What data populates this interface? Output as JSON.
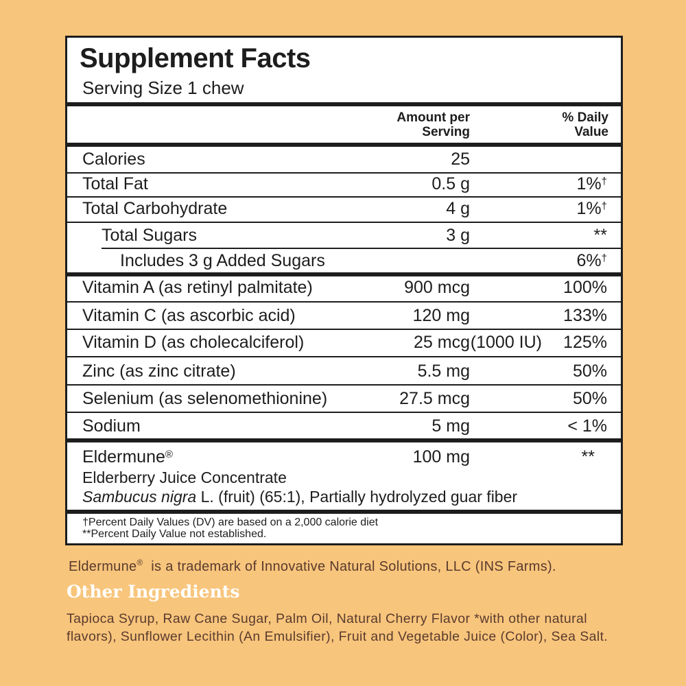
{
  "panel": {
    "title": "Supplement Facts",
    "serving_size": "Serving Size 1 chew",
    "header": {
      "amount_line1": "Amount per",
      "amount_line2": "Serving",
      "dv_line1": "% Daily",
      "dv_line2": "Value"
    },
    "rows": [
      {
        "name": "Calories",
        "amount": "25",
        "dv": "",
        "mark": ""
      },
      {
        "name": "Total Fat",
        "amount": "0.5 g",
        "dv": "1%",
        "mark": "†"
      },
      {
        "name": "Total Carbohydrate",
        "amount": "4 g",
        "dv": "1%",
        "mark": "†"
      },
      {
        "name": "Total Sugars",
        "amount": "3 g",
        "dv": "**",
        "mark": ""
      },
      {
        "name": "Includes 3 g Added Sugars",
        "amount": "",
        "dv": "6%",
        "mark": "†"
      },
      {
        "name": "Vitamin A (as retinyl palmitate)",
        "amount": "900 mcg",
        "dv": "100%",
        "mark": ""
      },
      {
        "name": "Vitamin C (as ascorbic acid)",
        "amount": "120 mg",
        "dv": "133%",
        "mark": ""
      },
      {
        "name": "Vitamin D (as cholecalciferol)",
        "amount": "25 mcg",
        "amount_extra": "(1000 IU)",
        "dv": "125%",
        "mark": ""
      },
      {
        "name": "Zinc (as zinc citrate)",
        "amount": "5.5 mg",
        "dv": "50%",
        "mark": ""
      },
      {
        "name": "Selenium (as selenomethionine)",
        "amount": "27.5 mcg",
        "dv": "50%",
        "mark": ""
      },
      {
        "name": "Sodium",
        "amount": "5 mg",
        "dv": "< 1%",
        "mark": ""
      }
    ],
    "blend": {
      "name": "Eldermune",
      "reg_mark": "®",
      "amount": "100 mg",
      "dv": "**",
      "line2": "Elderberry Juice Concentrate",
      "line3_italic": "Sambucus nigra",
      "line3_rest": " L. (fruit) (65:1), Partially hydrolyzed guar fiber"
    },
    "footnotes": [
      "†Percent Daily Values (DV) are based on a 2,000 calorie diet",
      "**Percent Daily Value not established."
    ]
  },
  "trademark": {
    "brand": "Eldermune",
    "reg_mark": "®",
    "text": "  is a trademark of Innovative Natural Solutions, LLC (INS Farms)."
  },
  "other_ingredients": {
    "title": "Other Ingredients",
    "text": "Tapioca Syrup, Raw Cane Sugar, Palm Oil, Natural Cherry Flavor *with other natural flavors), Sunflower Lecithin (An Emulsifier), Fruit and Vegetable Juice (Color), Sea Salt."
  }
}
